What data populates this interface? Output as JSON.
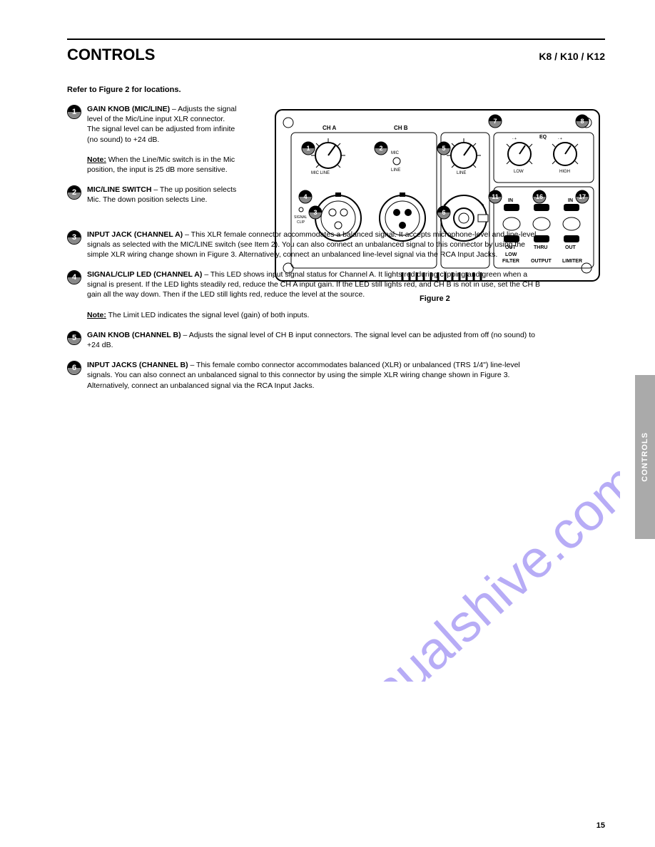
{
  "header": {
    "section": "CONTROLS",
    "product": "K8 / K10 / K12",
    "blurb": "Refer to Figure 2 for locations.",
    "page_number": "15"
  },
  "side_tab": "CONTROLS",
  "items": [
    {
      "n": "1",
      "title": "GAIN KNOB (MIC/LINE)",
      "body": " – Adjusts the signal level of the Mic/Line input XLR connector. The signal level can be adjusted from infinite (no sound) to +24 dB.",
      "note_label": "Note:",
      "note_body": " When the Line/Mic switch is in the Mic position, the input is 25 dB more sensitive.",
      "narrow": true
    },
    {
      "n": "2",
      "title": "MIC/LINE SWITCH",
      "body": " – The up position selects Mic. The down position selects Line.",
      "narrow": true
    },
    {
      "n": "3",
      "title": "INPUT JACK (CHANNEL A)",
      "body": " – This XLR female connector accommodates a balanced signal. It accepts microphone-level and line-level signals as selected with the MIC/LINE switch (see Item 2). You can also connect an unbalanced signal to this connector by using the simple XLR wiring change shown in Figure 3. Alternatively, connect an unbalanced line-level signal via the RCA Input Jacks.",
      "narrow": false
    },
    {
      "n": "4",
      "title": "SIGNAL/CLIP LED (CHANNEL A)",
      "body": " – This LED shows input signal status for Channel A. It lights red during clipping and green when a signal is present. If the LED lights steadily red, reduce the CH A input gain. If the LED still lights red, and CH B is not in use, set the CH B gain all the way down. Then if the LED still lights red, reduce the level at the source.",
      "note_label": "Note:",
      "note_body": " The Limit LED indicates the signal level (gain) of both inputs.",
      "narrow": false
    },
    {
      "n": "5",
      "title": "GAIN KNOB (CHANNEL B)",
      "body": " – Adjusts the signal level of CH B input connectors. The signal level can be adjusted from off (no sound) to +24 dB.",
      "narrow": false
    },
    {
      "n": "6",
      "title": "INPUT JACKS (CHANNEL B)",
      "body": " – This female combo connector accommodates balanced (XLR) or unbalanced (TRS 1/4\") line-level signals. You can also connect an unbalanced signal to this connector by using the simple XLR wiring change shown in Figure 3. Alternatively, connect an unbalanced signal via the RCA Input Jacks.",
      "narrow": false
    }
  ],
  "panel": {
    "bg": "#ffffff",
    "stroke": "#000000",
    "labels": {
      "ch_a": "CH A",
      "ch_b": "CH B",
      "knob_a": "MIC LINE",
      "mic": "MIC",
      "line": "LINE",
      "knob_b": "LINE",
      "sig_led": "SIGNAL / CLIP",
      "eq_low": "LOW",
      "eq_high": "HIGH",
      "eq": "EQ",
      "in": "IN",
      "out": "OUT",
      "mix": "MIX",
      "thru": "THRU",
      "low_filter_a": "LOW",
      "low_filter_b": "FILTER",
      "output": "OUTPUT",
      "limiter": "LIMITER",
      "fig": "Figure 2"
    },
    "callouts": [
      "1",
      "2",
      "3",
      "4",
      "5",
      "6",
      "7",
      "8",
      "11",
      "16",
      "17"
    ],
    "knob_color": "#ffffff",
    "tick_color": "#000000"
  },
  "watermark": {
    "text": "manualshive.com",
    "color": "#7b68ee",
    "opacity": 0.55
  }
}
